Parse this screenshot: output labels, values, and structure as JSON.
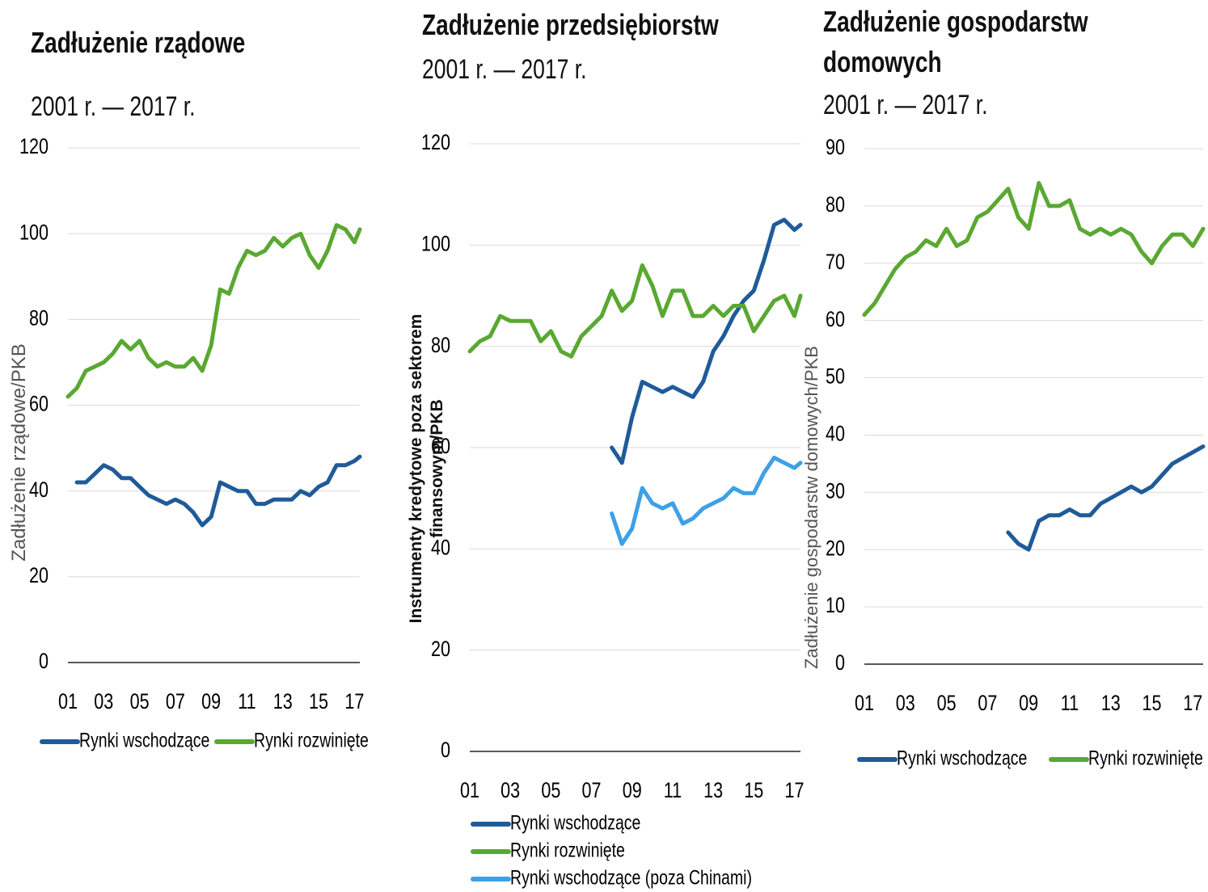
{
  "chart_data": [
    {
      "type": "line",
      "title": "Zadłużenie rządowe",
      "subtitle": "2001 r. — 2017 r.",
      "ylabel": "Zadłużenie rządowe/PKB",
      "x": [
        2001,
        2001.5,
        2002,
        2002.5,
        2003,
        2003.5,
        2004,
        2004.5,
        2005,
        2005.5,
        2006,
        2006.5,
        2007,
        2007.5,
        2008,
        2008.5,
        2009,
        2009.5,
        2010,
        2010.5,
        2011,
        2011.5,
        2012,
        2012.5,
        2013,
        2013.5,
        2014,
        2014.5,
        2015,
        2015.5,
        2016,
        2016.5,
        2017,
        2017.3
      ],
      "series": [
        {
          "name": "Rynki wschodzące",
          "color": "#1f5b99",
          "values": [
            null,
            42,
            42,
            44,
            46,
            45,
            43,
            43,
            41,
            39,
            38,
            37,
            38,
            37,
            35,
            32,
            34,
            42,
            41,
            40,
            40,
            37,
            37,
            38,
            38,
            38,
            40,
            39,
            41,
            42,
            46,
            46,
            47,
            48
          ]
        },
        {
          "name": "Rynki rozwinięte",
          "color": "#5aa832",
          "values": [
            62,
            64,
            68,
            69,
            70,
            72,
            75,
            73,
            75,
            71,
            69,
            70,
            69,
            69,
            71,
            68,
            74,
            87,
            86,
            92,
            96,
            95,
            96,
            99,
            97,
            99,
            100,
            95,
            92,
            96,
            102,
            101,
            98,
            101
          ]
        }
      ],
      "xlim": [
        2001,
        2017.3
      ],
      "xticks": [
        {
          "value": 2001,
          "label": "01"
        },
        {
          "value": 2003,
          "label": "03"
        },
        {
          "value": 2005,
          "label": "05"
        },
        {
          "value": 2007,
          "label": "07"
        },
        {
          "value": 2009,
          "label": "09"
        },
        {
          "value": 2011,
          "label": "11"
        },
        {
          "value": 2013,
          "label": "13"
        },
        {
          "value": 2015,
          "label": "15"
        },
        {
          "value": 2017,
          "label": "17"
        }
      ],
      "ylim": [
        0,
        120
      ],
      "yticks": [
        0,
        20,
        40,
        60,
        80,
        100,
        120
      ],
      "grid": true,
      "legend": "bottom"
    },
    {
      "type": "line",
      "title": "Zadłużenie przedsiębiorstw",
      "subtitle": "2001 r. — 2017 r.",
      "ylabel": "Instrumenty kredytowe poza sektorem finansowym/PKB",
      "x": [
        2001,
        2001.5,
        2002,
        2002.5,
        2003,
        2003.5,
        2004,
        2004.5,
        2005,
        2005.5,
        2006,
        2006.5,
        2007,
        2007.5,
        2008,
        2008.5,
        2009,
        2009.5,
        2010,
        2010.5,
        2011,
        2011.5,
        2012,
        2012.5,
        2013,
        2013.5,
        2014,
        2014.5,
        2015,
        2015.5,
        2016,
        2016.5,
        2017,
        2017.3
      ],
      "series": [
        {
          "name": "Rynki wschodzące",
          "color": "#1f5b99",
          "values": [
            null,
            null,
            null,
            null,
            null,
            null,
            null,
            null,
            null,
            null,
            null,
            null,
            null,
            null,
            60,
            57,
            66,
            73,
            72,
            71,
            72,
            71,
            70,
            73,
            79,
            82,
            86,
            89,
            91,
            97,
            104,
            105,
            103,
            104
          ]
        },
        {
          "name": "Rynki rozwinięte",
          "color": "#5aa832",
          "values": [
            79,
            81,
            82,
            86,
            85,
            85,
            85,
            81,
            83,
            79,
            78,
            82,
            84,
            86,
            91,
            87,
            89,
            96,
            92,
            86,
            91,
            91,
            86,
            86,
            88,
            86,
            88,
            88,
            83,
            86,
            89,
            90,
            86,
            90
          ]
        },
        {
          "name": "Rynki wschodzące (poza Chinami)",
          "color": "#3ea0e6",
          "values": [
            null,
            null,
            null,
            null,
            null,
            null,
            null,
            null,
            null,
            null,
            null,
            null,
            null,
            null,
            47,
            41,
            44,
            52,
            49,
            48,
            49,
            45,
            46,
            48,
            49,
            50,
            52,
            51,
            51,
            55,
            58,
            57,
            56,
            57
          ]
        }
      ],
      "xlim": [
        2001,
        2017.3
      ],
      "xticks": [
        {
          "value": 2001,
          "label": "01"
        },
        {
          "value": 2003,
          "label": "03"
        },
        {
          "value": 2005,
          "label": "05"
        },
        {
          "value": 2007,
          "label": "07"
        },
        {
          "value": 2009,
          "label": "09"
        },
        {
          "value": 2011,
          "label": "11"
        },
        {
          "value": 2013,
          "label": "13"
        },
        {
          "value": 2015,
          "label": "15"
        },
        {
          "value": 2017,
          "label": "17"
        }
      ],
      "ylim": [
        0,
        120
      ],
      "yticks": [
        0,
        20,
        40,
        60,
        80,
        100,
        120
      ],
      "grid": true,
      "legend": "bottom"
    },
    {
      "type": "line",
      "title": "Zadłużenie gospodarstw domowych",
      "subtitle": "2001 r. — 2017 r.",
      "ylabel": "Zadłużenie gospodarstw domowych/PKB",
      "x": [
        2001,
        2001.5,
        2002,
        2002.5,
        2003,
        2003.5,
        2004,
        2004.5,
        2005,
        2005.5,
        2006,
        2006.5,
        2007,
        2007.5,
        2008,
        2008.5,
        2009,
        2009.5,
        2010,
        2010.5,
        2011,
        2011.5,
        2012,
        2012.5,
        2013,
        2013.5,
        2014,
        2014.5,
        2015,
        2015.5,
        2016,
        2016.5,
        2017,
        2017.5
      ],
      "series": [
        {
          "name": "Rynki wschodzące",
          "color": "#1f5b99",
          "values": [
            null,
            null,
            null,
            null,
            null,
            null,
            null,
            null,
            null,
            null,
            null,
            null,
            null,
            null,
            23,
            21,
            20,
            25,
            26,
            26,
            27,
            26,
            26,
            28,
            29,
            30,
            31,
            30,
            31,
            33,
            35,
            36,
            37,
            38
          ]
        },
        {
          "name": "Rynki rozwinięte",
          "color": "#5aa832",
          "values": [
            61,
            63,
            66,
            69,
            71,
            72,
            74,
            73,
            76,
            73,
            74,
            78,
            79,
            81,
            83,
            78,
            76,
            84,
            80,
            80,
            81,
            76,
            75,
            76,
            75,
            76,
            75,
            72,
            70,
            73,
            75,
            75,
            73,
            76
          ]
        }
      ],
      "xlim": [
        2001,
        2017.5
      ],
      "xticks": [
        {
          "value": 2001,
          "label": "01"
        },
        {
          "value": 2003,
          "label": "03"
        },
        {
          "value": 2005,
          "label": "05"
        },
        {
          "value": 2007,
          "label": "07"
        },
        {
          "value": 2009,
          "label": "09"
        },
        {
          "value": 2011,
          "label": "11"
        },
        {
          "value": 2013,
          "label": "13"
        },
        {
          "value": 2015,
          "label": "15"
        },
        {
          "value": 2017,
          "label": "17"
        }
      ],
      "ylim": [
        0,
        90
      ],
      "yticks": [
        0,
        10,
        20,
        30,
        40,
        50,
        60,
        70,
        80,
        90
      ],
      "grid": true,
      "legend": "bottom"
    }
  ]
}
